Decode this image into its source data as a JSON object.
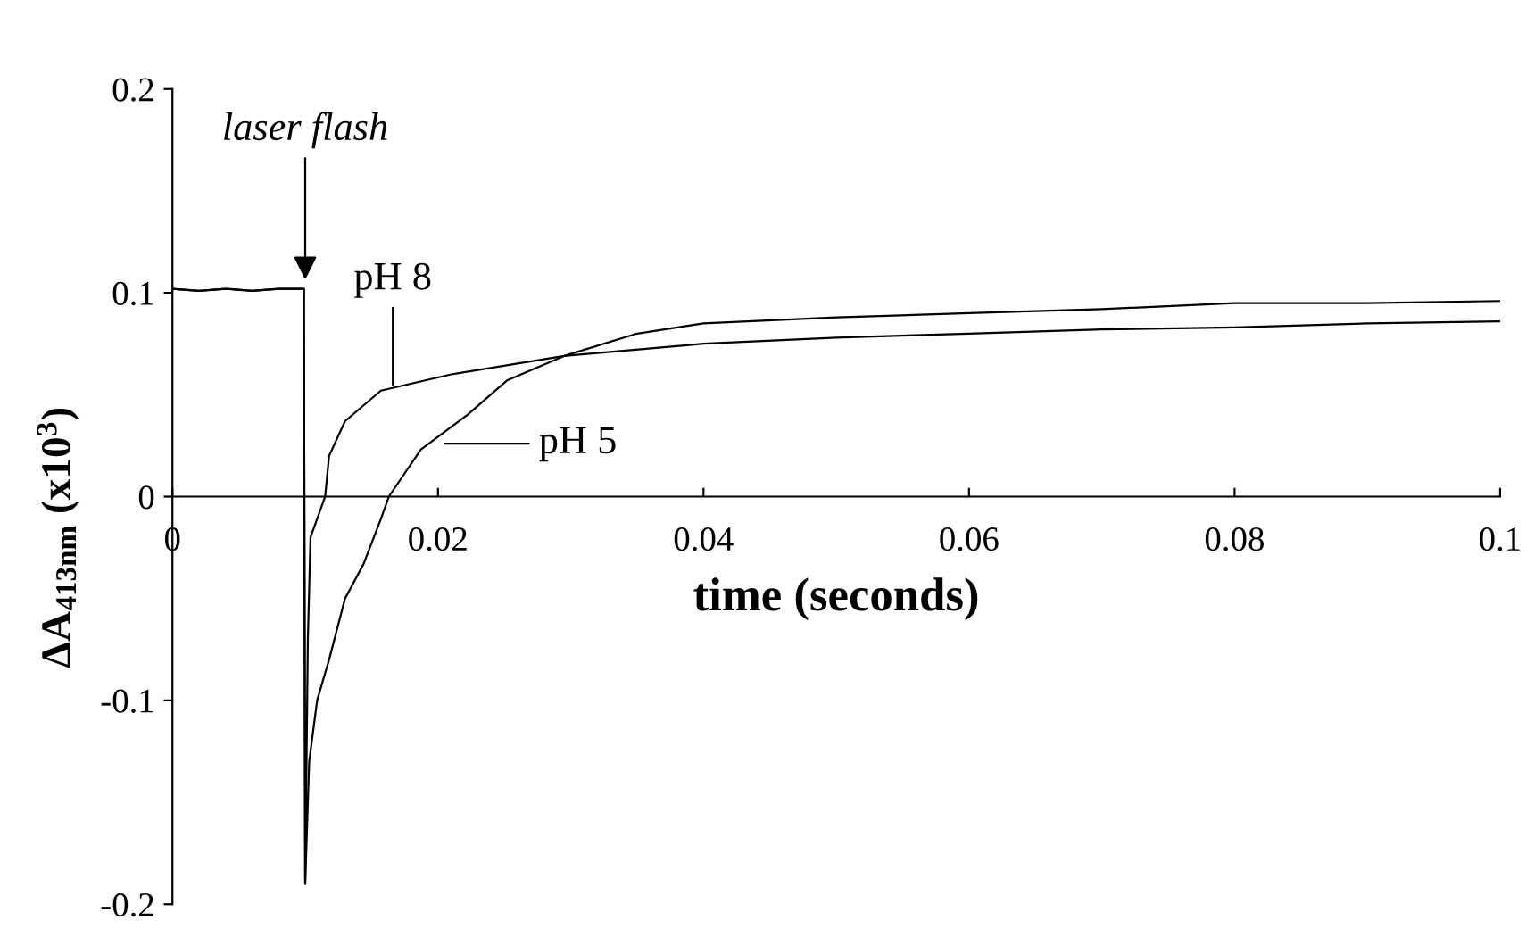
{
  "chart_data": {
    "type": "line",
    "xlabel": "time (seconds)",
    "ylabel": "ΔA$_{413nm}$ (x10$^{3}$)",
    "xlim": [
      0,
      0.1
    ],
    "ylim": [
      -0.2,
      0.2
    ],
    "xticks": [
      0,
      0.02,
      0.04,
      0.06,
      0.08,
      0.1
    ],
    "yticks": [
      -0.2,
      -0.1,
      0,
      0.1,
      0.2
    ],
    "grid": false,
    "legend": false,
    "marker": "none",
    "line_style": "solid",
    "series": [
      {
        "color": "#000000",
        "x": [
          0,
          0.002,
          0.004,
          0.006,
          0.008,
          0.0099,
          0.01,
          0.0101,
          0.0102,
          0.0104,
          0.0115,
          0.0118,
          0.013,
          0.0157,
          0.021,
          0.0295,
          0.04,
          0.05,
          0.06,
          0.07,
          0.08,
          0.09,
          0.1
        ],
        "values": [
          0.102,
          0.101,
          0.102,
          0.101,
          0.102,
          0.102,
          -0.19,
          -0.13,
          -0.07,
          -0.02,
          0,
          0.02,
          0.037,
          0.052,
          0.06,
          0.069,
          0.075,
          0.078,
          0.08,
          0.082,
          0.083,
          0.085,
          0.086
        ]
      },
      {
        "color": "#000000",
        "x": [
          0,
          0.002,
          0.004,
          0.006,
          0.008,
          0.0099,
          0.01,
          0.0103,
          0.0109,
          0.0118,
          0.013,
          0.0144,
          0.0157,
          0.0163,
          0.0187,
          0.0222,
          0.0252,
          0.0295,
          0.035,
          0.04,
          0.05,
          0.06,
          0.07,
          0.08,
          0.09,
          0.1
        ],
        "values": [
          0.102,
          0.101,
          0.102,
          0.101,
          0.102,
          0.102,
          -0.19,
          -0.13,
          -0.1,
          -0.08,
          -0.05,
          -0.033,
          -0.011,
          0,
          0.023,
          0.04,
          0.057,
          0.069,
          0.08,
          0.085,
          0.088,
          0.09,
          0.092,
          0.095,
          0.095,
          0.096
        ]
      }
    ],
    "annotations": [
      {
        "text": "laser flash",
        "x": 0.01,
        "y": 0.104
      },
      {
        "text": "pH 8",
        "x": 0.0166,
        "y": 0.055
      },
      {
        "text": "pH 5",
        "x": 0.0205,
        "y": 0.026
      }
    ]
  }
}
